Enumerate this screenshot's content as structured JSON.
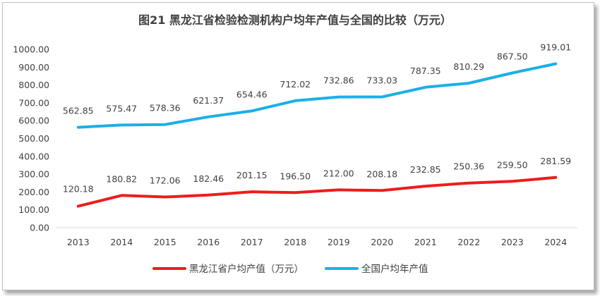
{
  "chart_data": {
    "type": "line",
    "title": "图21 黑龙江省检验检测机构户均年产值与全国的比较（万元）",
    "categories": [
      "2013",
      "2014",
      "2015",
      "2016",
      "2017",
      "2018",
      "2019",
      "2020",
      "2021",
      "2022",
      "2023",
      "2024"
    ],
    "series": [
      {
        "name": "黑龙江省户均产值（万元）",
        "color": "#ee1c1c",
        "values": [
          120.18,
          180.82,
          172.06,
          182.46,
          201.15,
          196.5,
          212.0,
          208.18,
          232.85,
          250.36,
          259.5,
          281.59
        ],
        "labels": [
          "120.18",
          "180.82",
          "172.06",
          "182.46",
          "201.15",
          "196.50",
          "212.00",
          "208.18",
          "232.85",
          "250.36",
          "259.50",
          "281.59"
        ]
      },
      {
        "name": "全国户均年产值",
        "color": "#1ab0e8",
        "values": [
          562.85,
          575.47,
          578.36,
          621.37,
          654.46,
          712.02,
          732.86,
          733.03,
          787.35,
          810.29,
          867.5,
          919.01
        ],
        "labels": [
          "562.85",
          "575.47",
          "578.36",
          "621.37",
          "654.46",
          "712.02",
          "732.86",
          "733.03",
          "787.35",
          "810.29",
          "867.50",
          "919.01"
        ]
      }
    ],
    "ylim": [
      0,
      1000
    ],
    "yticks": [
      "0.00",
      "100.00",
      "200.00",
      "300.00",
      "400.00",
      "500.00",
      "600.00",
      "700.00",
      "800.00",
      "900.00",
      "1000.00"
    ],
    "xlabel": "",
    "ylabel": "",
    "grid": false,
    "legend": "bottom"
  }
}
